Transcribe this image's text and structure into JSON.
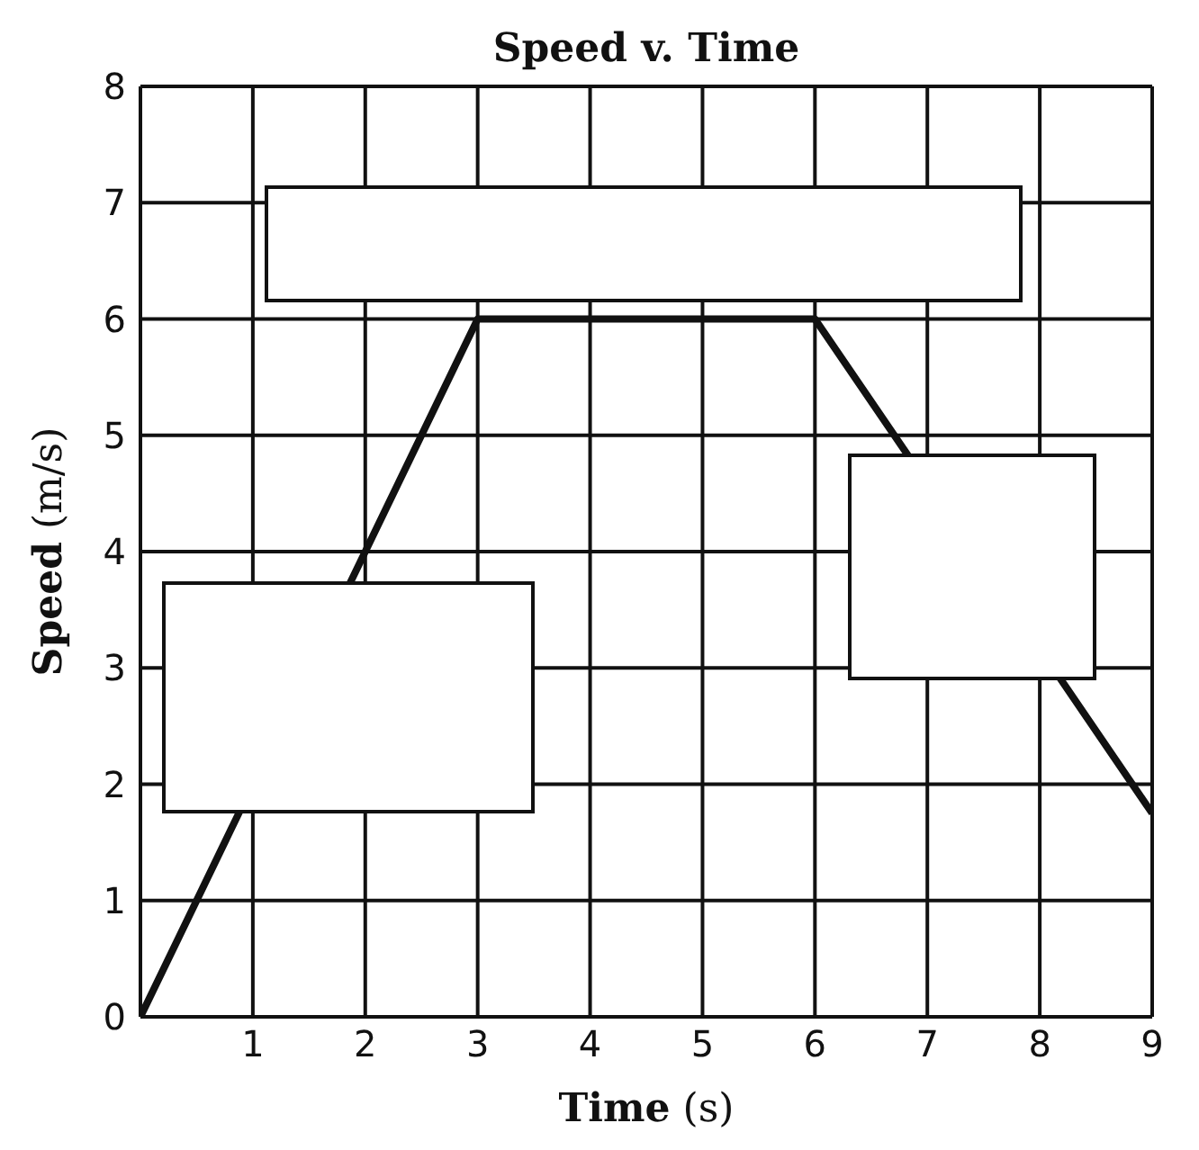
{
  "chart_data": {
    "type": "line",
    "title": "Speed v. Time",
    "xlabel": "Time (s)",
    "ylabel": "Speed (m/s)",
    "x": [
      0,
      3,
      6,
      9
    ],
    "series": [
      {
        "color": "#111111",
        "values": [
          0,
          6,
          6,
          1.75
        ]
      }
    ],
    "xlim": [
      0,
      9
    ],
    "xticks": [
      {
        "value": 0,
        "label": null
      },
      1,
      2,
      3,
      4,
      5,
      6,
      7,
      8,
      9
    ],
    "ylim": [
      0,
      8
    ],
    "yticks": [
      0,
      1,
      2,
      3,
      4,
      5,
      6,
      7,
      8
    ],
    "grid": true,
    "marker": "none",
    "line_style": "solid",
    "legend": false
  }
}
